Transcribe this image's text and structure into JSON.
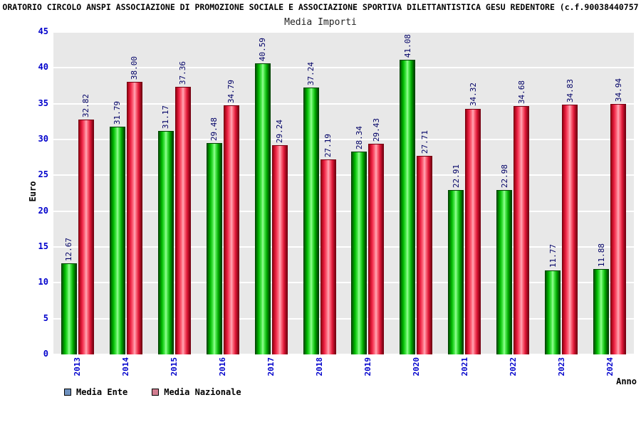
{
  "header": {
    "title": "ORATORIO CIRCOLO ANSPI ASSOCIAZIONE DI PROMOZIONE SOCIALE E ASSOCIAZIONE SPORTIVA DILETTANTISTICA GESU REDENTORE (c.f.90038440757"
  },
  "chart_data": {
    "type": "bar",
    "title": "Media Importi",
    "xlabel": "Anno",
    "ylabel": "Euro",
    "ylim": [
      0,
      45
    ],
    "yticks": [
      0,
      5,
      10,
      15,
      20,
      25,
      30,
      35,
      40,
      45
    ],
    "grid": "horizontal-white-on-gray",
    "legend_position": "bottom-left",
    "categories": [
      "2013",
      "2014",
      "2015",
      "2016",
      "2017",
      "2018",
      "2019",
      "2020",
      "2021",
      "2022",
      "2023",
      "2024"
    ],
    "series": [
      {
        "name": "Media Ente",
        "color": "#00cc00",
        "values": [
          12.67,
          31.79,
          31.17,
          29.48,
          40.59,
          37.24,
          28.34,
          41.08,
          22.91,
          22.98,
          11.77,
          11.88
        ]
      },
      {
        "name": "Media Nazionale",
        "color": "#ee2244",
        "values": [
          32.82,
          38.0,
          37.36,
          34.79,
          29.24,
          27.19,
          29.43,
          27.71,
          34.32,
          34.68,
          34.83,
          34.94
        ]
      }
    ]
  },
  "legend": {
    "swatch_colors": [
      "#6e91be",
      "#d27d90"
    ]
  },
  "colors": {
    "plot_background": "#e8e8e8",
    "gridline": "#ffffff",
    "axis_tick_text": "#0000cc",
    "value_label_text": "#000066"
  }
}
